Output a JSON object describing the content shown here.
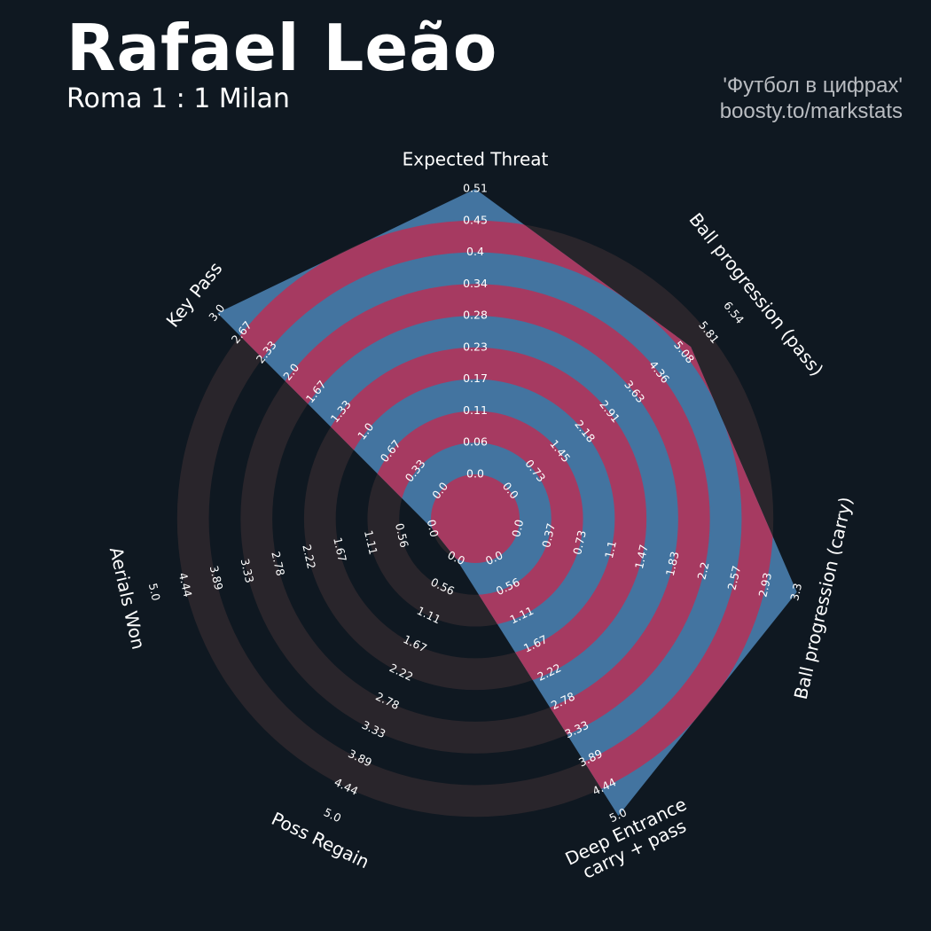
{
  "header": {
    "player": "Rafael Leão",
    "match": "Roma 1 : 1 Milan",
    "credit_line1": "'Футбол в цифрах'",
    "credit_line2": "boosty.to/markstats"
  },
  "chart_data": {
    "type": "radar",
    "params": [
      {
        "label": [
          "Expected Threat"
        ],
        "value": 0.51,
        "min": 0.0,
        "max": 0.51,
        "ticks": [
          "0.0",
          "0.06",
          "0.11",
          "0.17",
          "0.23",
          "0.28",
          "0.34",
          "0.4",
          "0.45",
          "0.51"
        ]
      },
      {
        "label": [
          "Ball progression (pass)"
        ],
        "value": 5.3,
        "min": 0.0,
        "max": 6.54,
        "ticks": [
          "0.0",
          "0.73",
          "1.45",
          "2.18",
          "2.91",
          "3.63",
          "4.36",
          "5.08",
          "5.81",
          "6.54"
        ]
      },
      {
        "label": [
          "Ball progression (carry)"
        ],
        "value": 3.3,
        "min": 0.0,
        "max": 3.3,
        "ticks": [
          "0.0",
          "0.37",
          "0.73",
          "1.1",
          "1.47",
          "1.83",
          "2.2",
          "2.57",
          "2.93",
          "3.3"
        ]
      },
      {
        "label": [
          "Deep Entrance",
          "carry + pass"
        ],
        "value": 5.0,
        "min": 0.0,
        "max": 5.0,
        "ticks": [
          "0.0",
          "0.56",
          "1.11",
          "1.67",
          "2.22",
          "2.78",
          "3.33",
          "3.89",
          "4.44",
          "5.0"
        ]
      },
      {
        "label": [
          "Poss Regain"
        ],
        "value": 0.0,
        "min": 0.0,
        "max": 5.0,
        "ticks": [
          "0.0",
          "0.56",
          "1.11",
          "1.67",
          "2.22",
          "2.78",
          "3.33",
          "3.89",
          "4.44",
          "5.0"
        ]
      },
      {
        "label": [
          "Aerials Won"
        ],
        "value": 0.0,
        "min": 0.0,
        "max": 5.0,
        "ticks": [
          "0.0",
          "0.56",
          "1.11",
          "1.67",
          "2.22",
          "2.78",
          "3.33",
          "3.89",
          "4.44",
          "5.0"
        ]
      },
      {
        "label": [
          "Key Pass"
        ],
        "value": 3.0,
        "min": 0.0,
        "max": 3.0,
        "ticks": [
          "0.0",
          "0.33",
          "0.67",
          "1.0",
          "1.33",
          "1.67",
          "2.0",
          "2.33",
          "2.67",
          "3.0"
        ]
      }
    ],
    "colors": {
      "background": "#0f1821",
      "ring_band": "#29252b",
      "polygon": "#4374a0",
      "polygon_band": "#a63a61"
    }
  }
}
